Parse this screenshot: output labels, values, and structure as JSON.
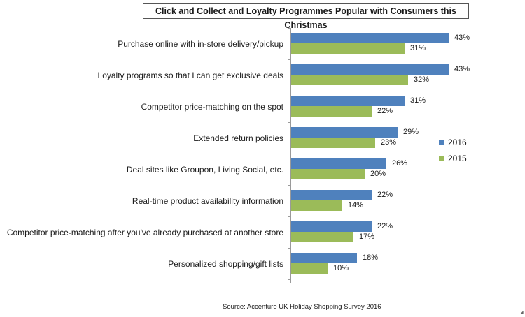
{
  "chart_data": {
    "type": "bar",
    "orientation": "horizontal",
    "title": "Click and Collect and Loyalty Programmes Popular with Consumers this Christmas",
    "categories": [
      "Purchase online with in-store delivery/pickup",
      "Loyalty programs so that I can get exclusive deals",
      "Competitor price-matching on the spot",
      "Extended return policies",
      "Deal sites like Groupon, Living Social, etc.",
      "Real-time product availability information",
      "Competitor price-matching after you've already purchased at another store",
      "Personalized shopping/gift lists"
    ],
    "series": [
      {
        "name": "2016",
        "color": "#4f81bd",
        "values": [
          43,
          43,
          31,
          29,
          26,
          22,
          22,
          18
        ]
      },
      {
        "name": "2015",
        "color": "#9bbb59",
        "values": [
          31,
          32,
          22,
          23,
          20,
          14,
          17,
          10
        ]
      }
    ],
    "value_suffix": "%",
    "xlabel": "",
    "ylabel": "",
    "xlim": [
      0,
      50
    ],
    "grid": false,
    "legend_position": "right",
    "source": "Source: Accenture UK Holiday Shopping Survey 2016"
  }
}
